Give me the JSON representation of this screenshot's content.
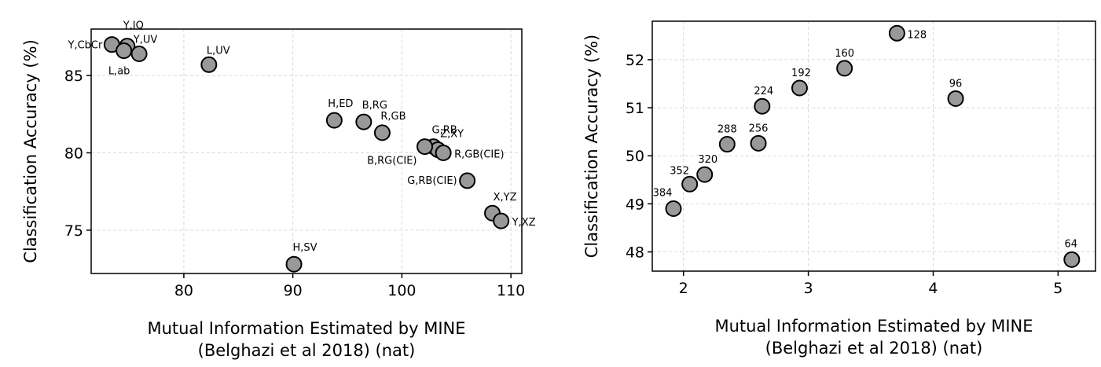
{
  "chart_data": [
    {
      "type": "scatter",
      "xlabel_lines": [
        "Mutual Information Estimated by MINE",
        "(Belghazi et al 2018) (nat)"
      ],
      "ylabel": "Classification Accuracy (%)",
      "xlim": [
        71.5,
        111
      ],
      "ylim": [
        72.2,
        88.0
      ],
      "xticks": [
        80,
        90,
        100,
        110
      ],
      "yticks": [
        75,
        80,
        85
      ],
      "grid": true,
      "marker_color": "#999999",
      "points": [
        {
          "label": "Y,IQ",
          "x": 74.8,
          "y": 86.9
        },
        {
          "label": "Y,CbCr",
          "x": 73.4,
          "y": 87.0
        },
        {
          "label": "Y,UV",
          "x": 75.9,
          "y": 86.4
        },
        {
          "label": "L,ab",
          "x": 74.5,
          "y": 86.6
        },
        {
          "label": "L,UV",
          "x": 82.3,
          "y": 85.7
        },
        {
          "label": "H,ED",
          "x": 93.8,
          "y": 82.1
        },
        {
          "label": "B,RG",
          "x": 96.5,
          "y": 82.0
        },
        {
          "label": "R,GB",
          "x": 98.2,
          "y": 81.3
        },
        {
          "label": "G,RB",
          "x": 102.9,
          "y": 80.4
        },
        {
          "label": "Z,XY",
          "x": 103.3,
          "y": 80.2
        },
        {
          "label": "B,RG(CIE)",
          "x": 102.1,
          "y": 80.4
        },
        {
          "label": "R,GB(CIE)",
          "x": 103.8,
          "y": 80.0
        },
        {
          "label": "G,RB(CIE)",
          "x": 106.0,
          "y": 78.2
        },
        {
          "label": "X,YZ",
          "x": 108.3,
          "y": 76.1
        },
        {
          "label": "Y,XZ",
          "x": 109.1,
          "y": 75.6
        },
        {
          "label": "H,SV",
          "x": 90.1,
          "y": 72.8
        }
      ]
    },
    {
      "type": "scatter",
      "xlabel_lines": [
        "Mutual Information Estimated by MINE",
        "(Belghazi et al 2018) (nat)"
      ],
      "ylabel": "Classification Accuracy (%)",
      "xlim": [
        1.75,
        5.3
      ],
      "ylim": [
        47.6,
        52.8
      ],
      "xticks": [
        2,
        3,
        4,
        5
      ],
      "yticks": [
        48,
        49,
        50,
        51,
        52
      ],
      "grid": true,
      "marker_color": "#999999",
      "points": [
        {
          "label": "128",
          "x": 3.71,
          "y": 52.55
        },
        {
          "label": "160",
          "x": 3.29,
          "y": 51.82
        },
        {
          "label": "192",
          "x": 2.93,
          "y": 51.41
        },
        {
          "label": "96",
          "x": 4.18,
          "y": 51.19
        },
        {
          "label": "224",
          "x": 2.63,
          "y": 51.03
        },
        {
          "label": "288",
          "x": 2.35,
          "y": 50.24
        },
        {
          "label": "256",
          "x": 2.6,
          "y": 50.26
        },
        {
          "label": "320",
          "x": 2.17,
          "y": 49.61
        },
        {
          "label": "352",
          "x": 2.05,
          "y": 49.41
        },
        {
          "label": "384",
          "x": 1.92,
          "y": 48.9
        },
        {
          "label": "64",
          "x": 5.11,
          "y": 47.84
        }
      ]
    }
  ]
}
